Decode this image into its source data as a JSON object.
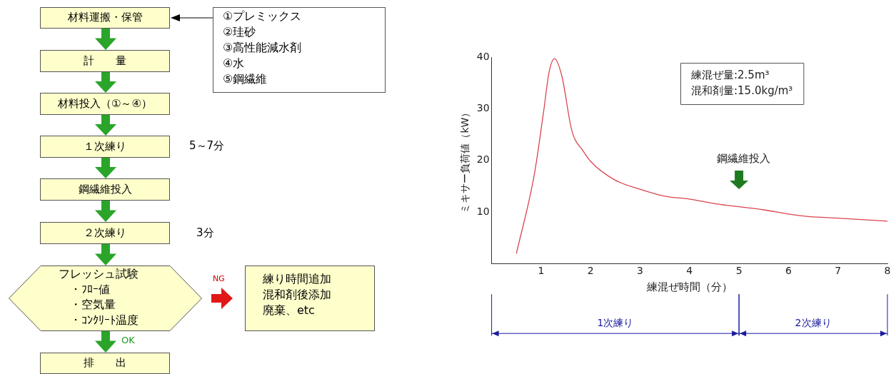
{
  "chart_data": [
    {
      "type": "other",
      "annotations": [
        "材料運搬・保管",
        "計　　量",
        "材料投入（①～④）",
        "１次練り",
        "鋼繊維投入",
        "２次練り",
        "フレッシュ試験",
        "・ﾌﾛｰ値",
        "・空気量",
        "・ｺﾝｸﾘｰﾄ温度",
        "排　　出",
        "①プレミックス",
        "②珪砂",
        "③高性能減水剤",
        "④水",
        "⑤鋼繊維",
        "5～7分",
        "3分",
        "NG",
        "OK",
        "練り時間追加",
        "混和剤後添加",
        "廃棄、etc"
      ]
    },
    {
      "type": "line",
      "xlabel": "練混ぜ時間（分）",
      "ylabel": "ミキサー負荷値（kW）",
      "x": [
        0.5,
        0.86,
        1.05,
        1.16,
        1.27,
        1.42,
        1.62,
        1.85,
        2.02,
        2.49,
        3.0,
        3.52,
        3.99,
        4.51,
        5.0,
        5.5,
        6.0,
        6.41,
        6.99,
        8.0
      ],
      "series": [
        {
          "color": "#d9454f",
          "values": [
            1.9,
            17.1,
            29.4,
            37,
            39.7,
            36.3,
            25.8,
            21.8,
            19.6,
            16.2,
            14.4,
            13.0,
            12.5,
            11.6,
            11.0,
            10.4,
            9.6,
            9.1,
            8.8,
            8.2
          ]
        }
      ],
      "xlim": [
        0,
        8
      ],
      "xticks": [
        1,
        2,
        3,
        4,
        5,
        6,
        7,
        8
      ],
      "ylim": [
        0,
        40
      ],
      "yticks": [
        10,
        20,
        30,
        40
      ],
      "grid": false,
      "legend": false,
      "marker": "none",
      "line_style": "solid",
      "annotations": [
        "練混ぜ量:2.5m³",
        "混和剤量:15.0kg/m³",
        "鋼繊維投入",
        "1次練り",
        "2次練り"
      ]
    }
  ]
}
